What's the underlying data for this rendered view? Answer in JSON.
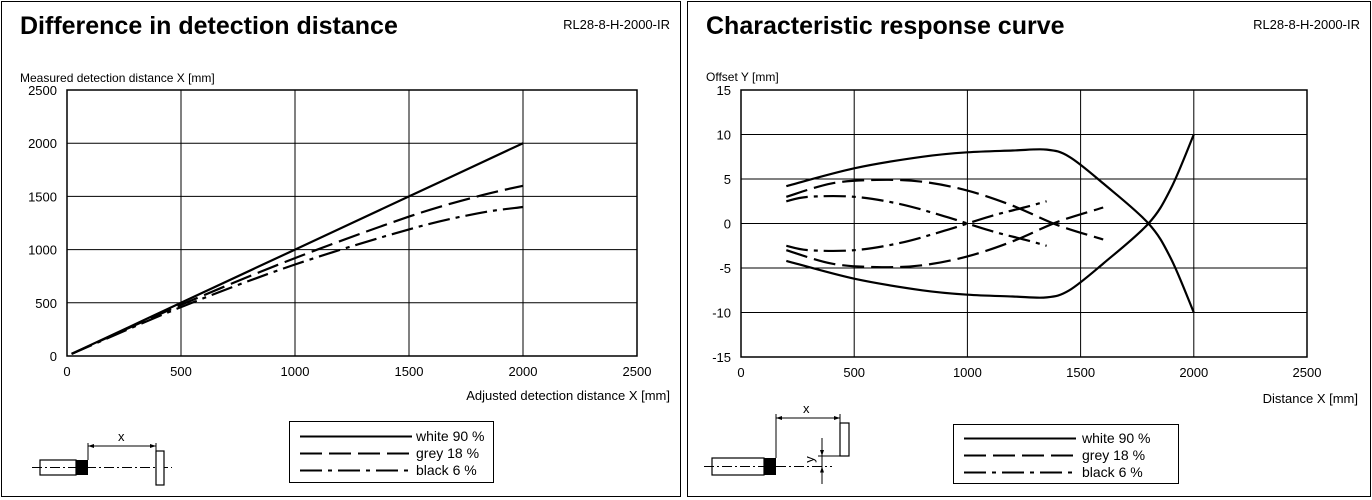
{
  "panels": [
    {
      "title": "Difference in detection distance",
      "model": "RL28-8-H-2000-IR",
      "legend": [
        {
          "label": "white 90 %",
          "dash": "solid"
        },
        {
          "label": "grey 18 %",
          "dash": "dash"
        },
        {
          "label": "black 6 %",
          "dash": "dashdot"
        }
      ],
      "diagram_label": "x"
    },
    {
      "title": "Characteristic response curve",
      "model": "RL28-8-H-2000-IR",
      "legend": [
        {
          "label": "white 90 %",
          "dash": "solid"
        },
        {
          "label": "grey 18 %",
          "dash": "dash"
        },
        {
          "label": "black 6 %",
          "dash": "dashdot"
        }
      ],
      "diagram_label_x": "x",
      "diagram_label_y": "y"
    }
  ],
  "chart_data": [
    {
      "type": "line",
      "title": "Difference in detection distance",
      "xlabel": "Adjusted detection distance X [mm]",
      "ylabel": "Measured detection distance X [mm]",
      "xlim": [
        0,
        2500
      ],
      "ylim": [
        0,
        2500
      ],
      "xticks": [
        0,
        500,
        1000,
        1500,
        2000,
        2500
      ],
      "yticks": [
        0,
        500,
        1000,
        1500,
        2000,
        2500
      ],
      "grid": true,
      "series": [
        {
          "name": "white 90 %",
          "dash": "solid",
          "x": [
            20,
            500,
            1000,
            1500,
            2000
          ],
          "y": [
            20,
            500,
            1000,
            1500,
            2000
          ]
        },
        {
          "name": "grey 18 %",
          "dash": "dash",
          "x": [
            20,
            500,
            1000,
            1500,
            1800,
            2000
          ],
          "y": [
            20,
            480,
            920,
            1310,
            1500,
            1600
          ]
        },
        {
          "name": "black 6 %",
          "dash": "dashdot",
          "x": [
            20,
            500,
            1000,
            1500,
            1800,
            2000
          ],
          "y": [
            20,
            460,
            860,
            1190,
            1340,
            1400
          ]
        }
      ]
    },
    {
      "type": "line",
      "title": "Characteristic response curve",
      "xlabel": "Distance X [mm]",
      "ylabel": "Offset Y [mm]",
      "xlim": [
        0,
        2500
      ],
      "ylim": [
        -15,
        15
      ],
      "xticks": [
        0,
        500,
        1000,
        1500,
        2000,
        2500
      ],
      "yticks": [
        -15,
        -10,
        -5,
        0,
        5,
        10,
        15
      ],
      "grid": true,
      "series": [
        {
          "name": "white 90 %",
          "dash": "solid",
          "curves": [
            {
              "x": [
                200,
                500,
                800,
                1000,
                1200,
                1350,
                1450,
                1600,
                1800,
                1900,
                2000
              ],
              "y": [
                4.2,
                6.2,
                7.5,
                8.0,
                8.2,
                8.3,
                7.5,
                4.5,
                0,
                -4.0,
                -10.0
              ]
            },
            {
              "x": [
                200,
                500,
                800,
                1000,
                1200,
                1350,
                1450,
                1600,
                1800,
                1900,
                2000
              ],
              "y": [
                -4.2,
                -6.2,
                -7.5,
                -8.0,
                -8.2,
                -8.3,
                -7.5,
                -4.5,
                0,
                4.0,
                10.0
              ]
            }
          ]
        },
        {
          "name": "grey 18 %",
          "dash": "dash",
          "curves": [
            {
              "x": [
                200,
                400,
                600,
                800,
                1000,
                1200,
                1400,
                1600
              ],
              "y": [
                3.0,
                4.5,
                4.9,
                4.7,
                3.7,
                2.0,
                -0.2,
                -1.8
              ]
            },
            {
              "x": [
                200,
                400,
                600,
                800,
                1000,
                1200,
                1400,
                1600
              ],
              "y": [
                -3.0,
                -4.5,
                -4.9,
                -4.7,
                -3.7,
                -2.0,
                0.2,
                1.8
              ]
            }
          ]
        },
        {
          "name": "black 6 %",
          "dash": "dashdot",
          "curves": [
            {
              "x": [
                200,
                300,
                500,
                700,
                900,
                1100,
                1250,
                1350
              ],
              "y": [
                2.5,
                3.0,
                3.0,
                2.2,
                0.8,
                -0.8,
                -1.8,
                -2.5
              ]
            },
            {
              "x": [
                200,
                300,
                500,
                700,
                900,
                1100,
                1250,
                1350
              ],
              "y": [
                -2.5,
                -3.0,
                -3.0,
                -2.2,
                -0.8,
                0.8,
                1.8,
                2.5
              ]
            }
          ]
        }
      ]
    }
  ]
}
